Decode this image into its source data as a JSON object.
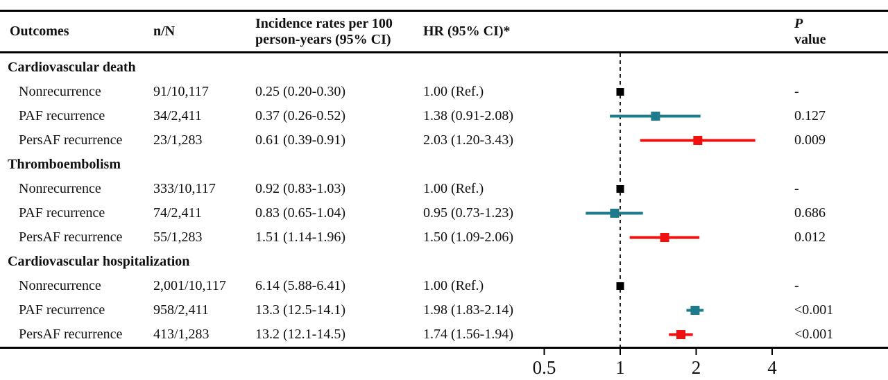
{
  "figure": {
    "columns": {
      "outcomes": "Outcomes",
      "n_over_N": "n/N",
      "incidence_line1": "Incidence rates per 100",
      "incidence_line2": "person-years (95% CI)",
      "hr": "HR (95% CI)*",
      "p_italic": "P",
      "p_rest": " value"
    }
  },
  "colors": {
    "ref": "#000000",
    "paf": "#1E7B8B",
    "persaf": "#F01010",
    "ref_line": "#222222",
    "text": "#111111"
  },
  "chart_data": {
    "type": "scatter",
    "subtype": "forest-plot",
    "xscale": "log2",
    "xlim": [
      0.35,
      6
    ],
    "xticks": [
      0.5,
      1,
      2,
      4
    ],
    "xtick_labels": [
      "0.5",
      "1",
      "2",
      "4"
    ],
    "reference_line_x": 1,
    "grid": false,
    "legend_position": "none",
    "groups": [
      {
        "label": "Cardiovascular death",
        "rows": [
          {
            "outcome": "Nonrecurrence",
            "n_over_N": "91/10,117",
            "incidence": "0.25 (0.20-0.30)",
            "hr_text": "1.00 (Ref.)",
            "p": "-",
            "hr": 1.0,
            "lo": null,
            "hi": null,
            "series": "ref"
          },
          {
            "outcome": "PAF recurrence",
            "n_over_N": "34/2,411",
            "incidence": "0.37 (0.26-0.52)",
            "hr_text": "1.38 (0.91-2.08)",
            "p": "0.127",
            "hr": 1.38,
            "lo": 0.91,
            "hi": 2.08,
            "series": "paf"
          },
          {
            "outcome": "PersAF recurrence",
            "n_over_N": "23/1,283",
            "incidence": "0.61 (0.39-0.91)",
            "hr_text": "2.03 (1.20-3.43)",
            "p": "0.009",
            "hr": 2.03,
            "lo": 1.2,
            "hi": 3.43,
            "series": "persaf"
          }
        ]
      },
      {
        "label": "Thromboembolism",
        "rows": [
          {
            "outcome": "Nonrecurrence",
            "n_over_N": "333/10,117",
            "incidence": "0.92 (0.83-1.03)",
            "hr_text": "1.00 (Ref.)",
            "p": "-",
            "hr": 1.0,
            "lo": null,
            "hi": null,
            "series": "ref"
          },
          {
            "outcome": "PAF recurrence",
            "n_over_N": "74/2,411",
            "incidence": "0.83 (0.65-1.04)",
            "hr_text": "0.95 (0.73-1.23)",
            "p": "0.686",
            "hr": 0.95,
            "lo": 0.73,
            "hi": 1.23,
            "series": "paf"
          },
          {
            "outcome": "PersAF recurrence",
            "n_over_N": "55/1,283",
            "incidence": "1.51 (1.14-1.96)",
            "hr_text": "1.50 (1.09-2.06)",
            "p": "0.012",
            "hr": 1.5,
            "lo": 1.09,
            "hi": 2.06,
            "series": "persaf"
          }
        ]
      },
      {
        "label": "Cardiovascular hospitalization",
        "rows": [
          {
            "outcome": "Nonrecurrence",
            "n_over_N": "2,001/10,117",
            "incidence": "6.14 (5.88-6.41)",
            "hr_text": "1.00 (Ref.)",
            "p": "-",
            "hr": 1.0,
            "lo": null,
            "hi": null,
            "series": "ref"
          },
          {
            "outcome": "PAF recurrence",
            "n_over_N": "958/2,411",
            "incidence": "13.3 (12.5-14.1)",
            "hr_text": "1.98 (1.83-2.14)",
            "p": "<0.001",
            "hr": 1.98,
            "lo": 1.83,
            "hi": 2.14,
            "series": "paf"
          },
          {
            "outcome": "PersAF recurrence",
            "n_over_N": "413/1,283",
            "incidence": "13.2 (12.1-14.5)",
            "hr_text": "1.74 (1.56-1.94)",
            "p": "<0.001",
            "hr": 1.74,
            "lo": 1.56,
            "hi": 1.94,
            "series": "persaf"
          }
        ]
      }
    ]
  }
}
